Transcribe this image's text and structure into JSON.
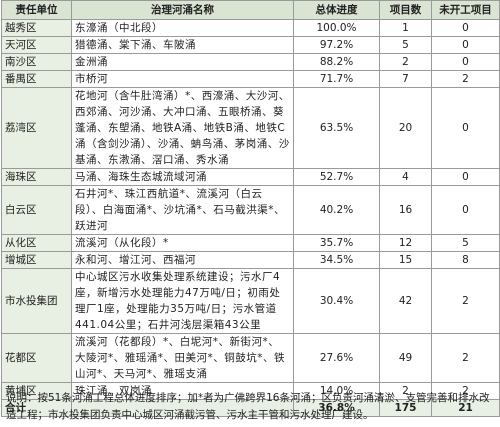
{
  "table": {
    "header": [
      "责任单位",
      "治理河涌名称",
      "总体进度",
      "项目数",
      "未开工项目"
    ],
    "rows": [
      {
        "unit": "越秀区",
        "rivers": "东濠涌（中北段）",
        "progress": "100.0%",
        "projects": "1",
        "unstarted": "0"
      },
      {
        "unit": "天河区",
        "rivers": "猎德涌、棠下涌、车陂涌",
        "progress": "97.2%",
        "projects": "5",
        "unstarted": "0"
      },
      {
        "unit": "南沙区",
        "rivers": "金洲涌",
        "progress": "88.2%",
        "projects": "2",
        "unstarted": "0"
      },
      {
        "unit": "番禺区",
        "rivers": "市桥河",
        "progress": "71.7%",
        "projects": "7",
        "unstarted": "2"
      },
      {
        "unit": "荔湾区",
        "rivers": "花地河（含牛肚湾涌）*、西濠涌、大沙河、西郊涌、河沙涌、大冲口涌、五眼桥涌、葵蓬涌、东塱涌、地铁A涌、地铁B涌、地铁C涌（含剑沙涌）、沙涌、蚺鸟涌、茅岗涌、沙基涌、东漖涌、滘口涌、秀水涌",
        "progress": "63.5%",
        "projects": "20",
        "unstarted": "0"
      },
      {
        "unit": "海珠区",
        "rivers": "马涌、海珠生态城流域河涌",
        "progress": "52.7%",
        "projects": "4",
        "unstarted": "0"
      },
      {
        "unit": "白云区",
        "rivers": "石井河*、珠江西航道*、流溪河（白云段）、白海面涌*、沙坑涌*、石马截洪渠*、跃进河",
        "progress": "40.2%",
        "projects": "16",
        "unstarted": "0"
      },
      {
        "unit": "从化区",
        "rivers": "流溪河（从化段）*",
        "progress": "35.7%",
        "projects": "12",
        "unstarted": "5"
      },
      {
        "unit": "增城区",
        "rivers": "永和河、增江河、西福河",
        "progress": "34.5%",
        "projects": "15",
        "unstarted": "8"
      },
      {
        "unit": "市水投集团",
        "rivers": "中心城区污水收集处理系统建设；污水厂4座，新增污水处理能力47万吨/日；初雨处理厂1座，处理能力35万吨/日；污水管道441.04公里；石井河浅层渠箱43公里",
        "progress": "30.4%",
        "projects": "42",
        "unstarted": "2"
      },
      {
        "unit": "花都区",
        "rivers": "流溪河（花都段）*、白坭河*、新街河*、大陵河*、雅瑶涌*、田美河*、铜鼓坑*、铁山河*、天马河*、雅瑶支涌",
        "progress": "27.6%",
        "projects": "49",
        "unstarted": "2"
      },
      {
        "unit": "黄埔区",
        "rivers": "珠江涌、双岗涌",
        "progress": "14.0%",
        "projects": "2",
        "unstarted": "2"
      }
    ],
    "total": {
      "unit": "合计",
      "progress": "36.8%",
      "projects": "175",
      "unstarted": "21"
    }
  },
  "note": "说明：按51条河涌工程总体进度排序；加*者为广佛跨界16条河涌；区负责河涌清淤、支管完善和排水改造工程；市水投集团负责中心城区河涌截污管、污水主干管和污水处理厂建设。"
}
